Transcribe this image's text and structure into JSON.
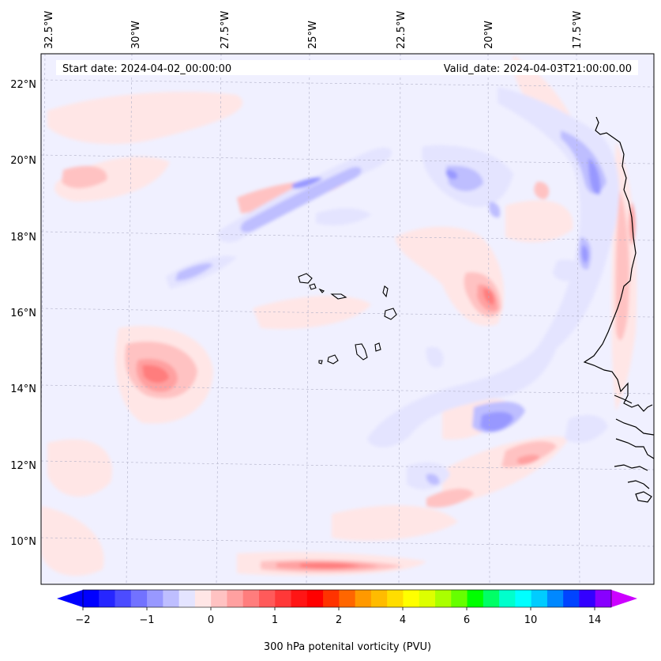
{
  "header": {
    "start_date": "Start date: 2024-04-02_00:00:00",
    "valid_date": "Valid_date: 2024-04-03T21:00:00.00"
  },
  "axes": {
    "lon_labels": [
      "32.5°W",
      "30°W",
      "27.5°W",
      "25°W",
      "22.5°W",
      "20°W",
      "17.5°W"
    ],
    "lat_labels": [
      "22°N",
      "20°N",
      "18°N",
      "16°N",
      "14°N",
      "12°N",
      "10°N"
    ]
  },
  "colorbar": {
    "label": "300 hPa potenital vorticity (PVU)",
    "ticks": [
      "−2",
      "−1",
      "0",
      "1",
      "2",
      "4",
      "6",
      "10",
      "14"
    ],
    "colors": [
      "#0000ff",
      "#2626ff",
      "#4c4cff",
      "#7272ff",
      "#9898ff",
      "#bebeff",
      "#e4e4ff",
      "#ffe6e6",
      "#ffc2c2",
      "#ffa0a0",
      "#ff7d7d",
      "#ff5a5a",
      "#ff3838",
      "#ff1515",
      "#ff0000",
      "#ff3300",
      "#ff6600",
      "#ff9900",
      "#ffbb00",
      "#ffdd00",
      "#ffff00",
      "#ddff00",
      "#aaff00",
      "#66ff00",
      "#00ff00",
      "#00ff66",
      "#00ffcc",
      "#00ffff",
      "#00ccff",
      "#0088ff",
      "#0044ff",
      "#3300ff",
      "#8800ff"
    ],
    "under_color": "#0000ff",
    "over_color": "#cc00ff"
  }
}
